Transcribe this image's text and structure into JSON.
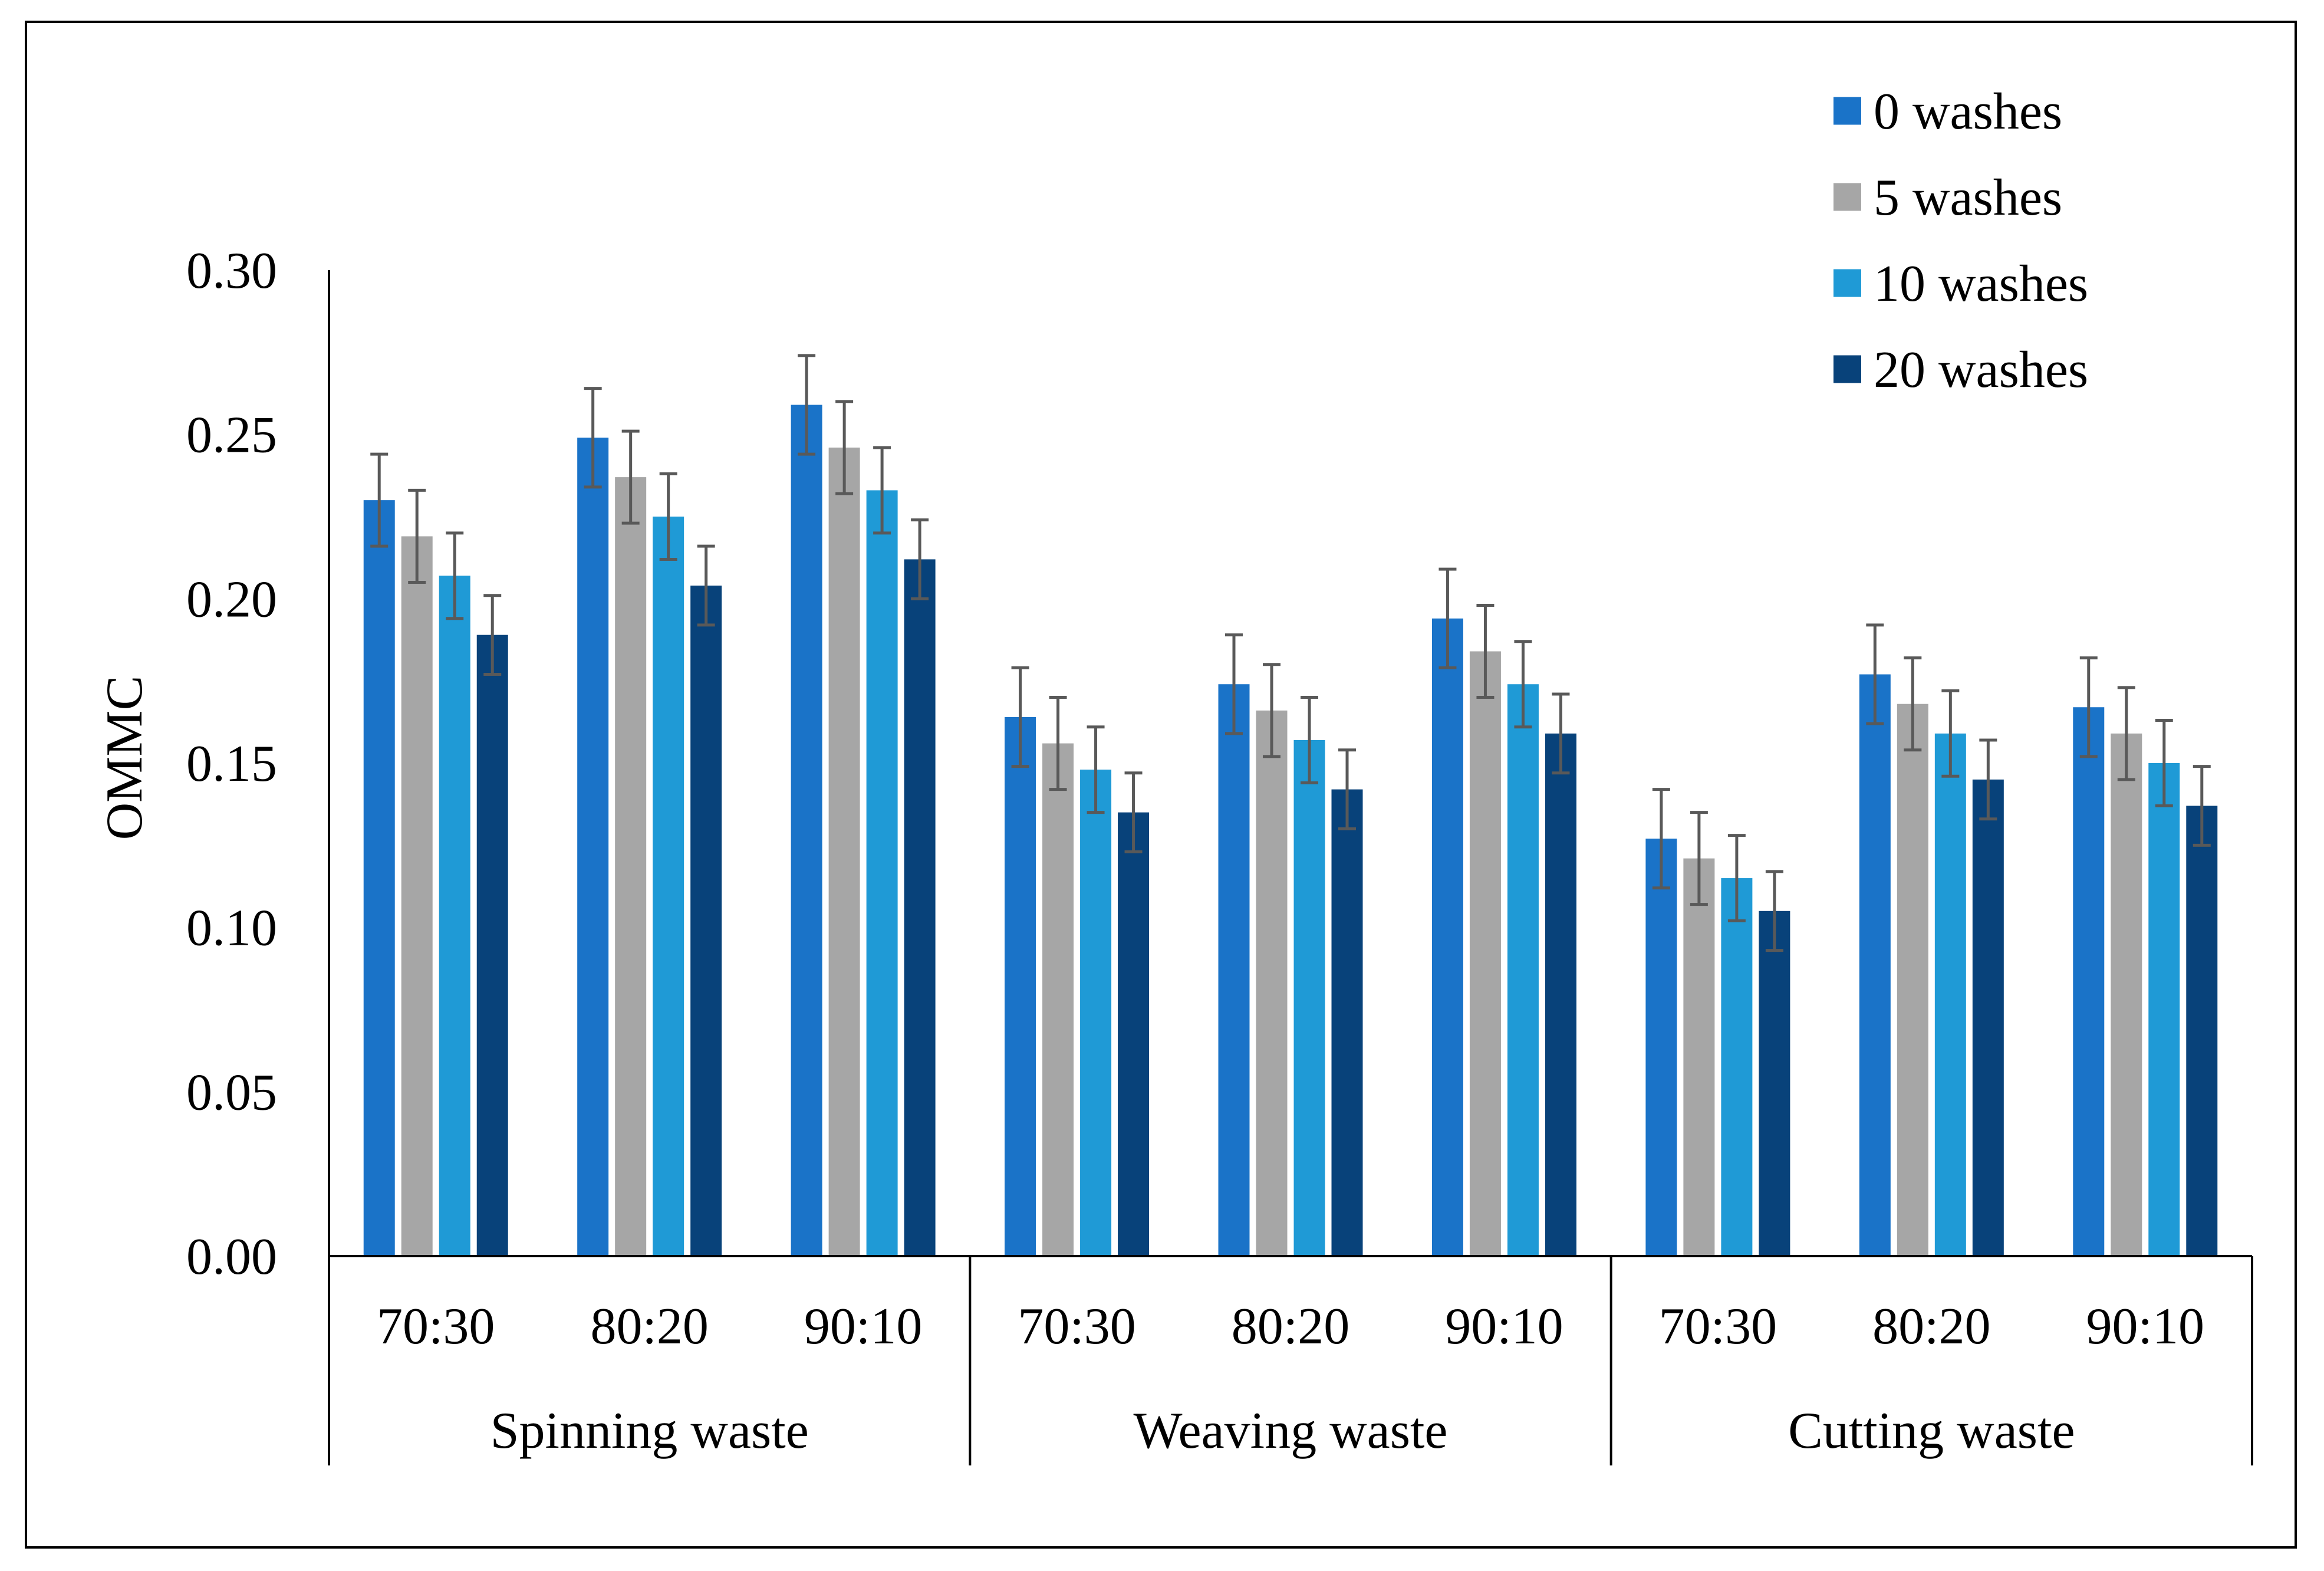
{
  "chart_data": {
    "type": "bar",
    "title": "",
    "ylabel": "OMMC",
    "xlabel": "",
    "ylim": [
      0,
      0.3
    ],
    "yticks": [
      0.0,
      0.05,
      0.1,
      0.15,
      0.2,
      0.25,
      0.3
    ],
    "ytick_labels": [
      "0.00",
      "0.05",
      "0.10",
      "0.15",
      "0.20",
      "0.25",
      "0.30"
    ],
    "groups": [
      {
        "label": "Spinning waste",
        "categories": [
          "70:30",
          "80:20",
          "90:10"
        ]
      },
      {
        "label": "Weaving waste",
        "categories": [
          "70:30",
          "80:20",
          "90:10"
        ]
      },
      {
        "label": "Cutting waste",
        "categories": [
          "70:30",
          "80:20",
          "90:10"
        ]
      }
    ],
    "legend_position": "top-right",
    "series": [
      {
        "name": "0 washes",
        "color": "#1a73c8",
        "values": [
          0.23,
          0.249,
          0.259,
          0.164,
          0.174,
          0.194,
          0.127,
          0.177,
          0.167
        ],
        "errors": [
          0.014,
          0.015,
          0.015,
          0.015,
          0.015,
          0.015,
          0.015,
          0.015,
          0.015
        ]
      },
      {
        "name": "5 washes",
        "color": "#a6a6a6",
        "values": [
          0.219,
          0.237,
          0.246,
          0.156,
          0.166,
          0.184,
          0.121,
          0.168,
          0.159
        ],
        "errors": [
          0.014,
          0.014,
          0.014,
          0.014,
          0.014,
          0.014,
          0.014,
          0.014,
          0.014
        ]
      },
      {
        "name": "10 washes",
        "color": "#1f9ad6",
        "values": [
          0.207,
          0.225,
          0.233,
          0.148,
          0.157,
          0.174,
          0.115,
          0.159,
          0.15
        ],
        "errors": [
          0.013,
          0.013,
          0.013,
          0.013,
          0.013,
          0.013,
          0.013,
          0.013,
          0.013
        ]
      },
      {
        "name": "20 washes",
        "color": "#08427a",
        "values": [
          0.189,
          0.204,
          0.212,
          0.135,
          0.142,
          0.159,
          0.105,
          0.145,
          0.137
        ],
        "errors": [
          0.012,
          0.012,
          0.012,
          0.012,
          0.012,
          0.012,
          0.012,
          0.012,
          0.012
        ]
      }
    ]
  }
}
